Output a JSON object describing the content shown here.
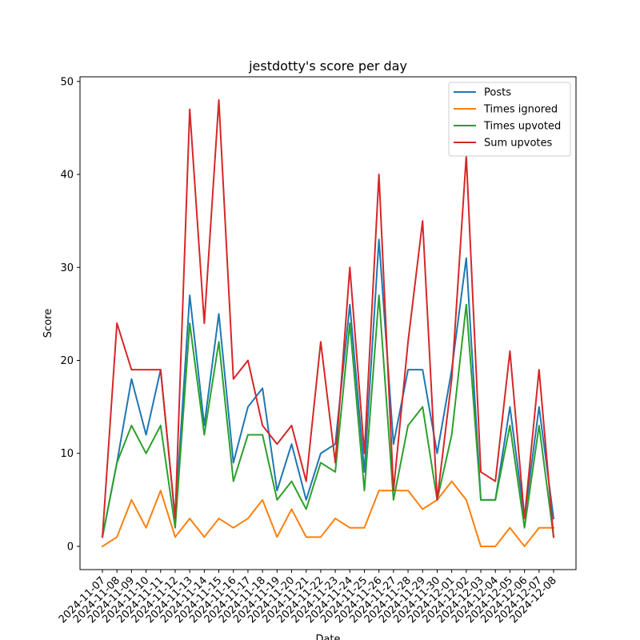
{
  "chart_data": {
    "type": "line",
    "title": "jestdotty's score per day",
    "xlabel": "Date",
    "ylabel": "Score",
    "ylim": [
      -2.5,
      50.5
    ],
    "yticks": [
      0,
      10,
      20,
      30,
      40,
      50
    ],
    "grid": false,
    "legend_position": "top-right",
    "x": [
      "2024-11-07",
      "2024-11-08",
      "2024-11-09",
      "2024-11-10",
      "2024-11-11",
      "2024-11-12",
      "2024-11-13",
      "2024-11-14",
      "2024-11-15",
      "2024-11-16",
      "2024-11-17",
      "2024-11-18",
      "2024-11-19",
      "2024-11-20",
      "2024-11-21",
      "2024-11-22",
      "2024-11-23",
      "2024-11-24",
      "2024-11-25",
      "2024-11-26",
      "2024-11-27",
      "2024-11-28",
      "2024-11-29",
      "2024-11-30",
      "2024-12-01",
      "2024-12-02",
      "2024-12-03",
      "2024-12-04",
      "2024-12-05",
      "2024-12-06",
      "2024-12-07",
      "2024-12-08"
    ],
    "series": [
      {
        "name": "Posts",
        "color": "#1f77b4",
        "values": [
          1,
          9,
          18,
          12,
          19,
          3,
          27,
          13,
          25,
          9,
          15,
          17,
          6,
          11,
          5,
          10,
          11,
          26,
          8,
          33,
          11,
          19,
          19,
          10,
          19,
          31,
          5,
          5,
          15,
          3,
          15,
          3
        ]
      },
      {
        "name": "Times ignored",
        "color": "#ff7f0e",
        "values": [
          0,
          1,
          5,
          2,
          6,
          1,
          3,
          1,
          3,
          2,
          3,
          5,
          1,
          4,
          1,
          1,
          3,
          2,
          2,
          6,
          6,
          6,
          4,
          5,
          7,
          5,
          0,
          0,
          2,
          0,
          2,
          2
        ]
      },
      {
        "name": "Times upvoted",
        "color": "#2ca02c",
        "values": [
          1,
          9,
          13,
          10,
          13,
          2,
          24,
          12,
          22,
          7,
          12,
          12,
          5,
          7,
          4,
          9,
          8,
          24,
          6,
          27,
          5,
          13,
          15,
          5,
          12,
          26,
          5,
          5,
          13,
          2,
          13,
          1
        ]
      },
      {
        "name": "Sum upvotes",
        "color": "#d62728",
        "values": [
          1,
          24,
          19,
          19,
          19,
          3,
          47,
          24,
          48,
          18,
          20,
          13,
          11,
          13,
          7,
          22,
          9,
          30,
          10,
          40,
          6,
          22,
          35,
          5,
          18,
          42,
          8,
          7,
          21,
          3,
          19,
          1
        ]
      }
    ]
  }
}
